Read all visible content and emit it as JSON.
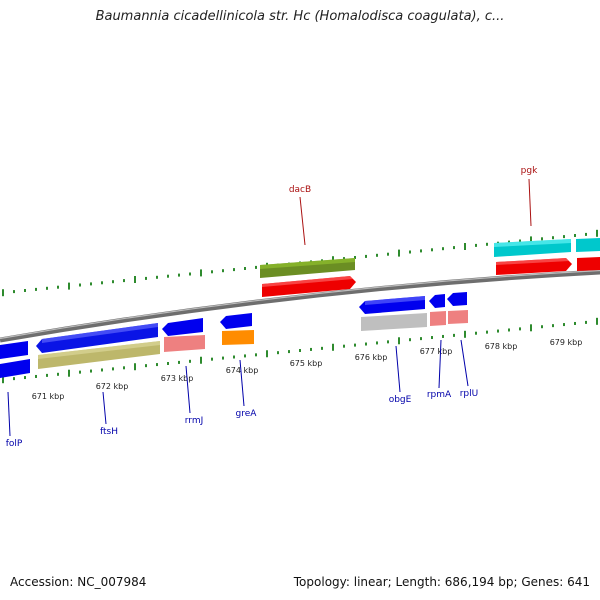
{
  "title": "Baumannia cicadellinicola str. Hc (Homalodisca coagulata), c...",
  "footer": {
    "accession": "Accession: NC_007984",
    "summary": "Topology: linear; Length: 686,194 bp; Genes: 641"
  },
  "colors": {
    "backbone": "#808080",
    "tick": "#2e8b2e",
    "label_forward": "#aa1111",
    "label_reverse": "#0000aa"
  },
  "scale_labels": [
    "671 kbp",
    "672 kbp",
    "673 kbp",
    "674 kbp",
    "675 kbp",
    "676 kbp",
    "677 kbp",
    "678 kbp",
    "679 kbp"
  ],
  "genes": [
    {
      "name": "folP",
      "strand": "reverse"
    },
    {
      "name": "ftsH",
      "strand": "reverse"
    },
    {
      "name": "rrmJ",
      "strand": "reverse"
    },
    {
      "name": "greA",
      "strand": "reverse"
    },
    {
      "name": "dacB",
      "strand": "forward"
    },
    {
      "name": "obgE",
      "strand": "reverse"
    },
    {
      "name": "rpmA",
      "strand": "reverse"
    },
    {
      "name": "rplU",
      "strand": "reverse"
    },
    {
      "name": "pgk",
      "strand": "forward"
    }
  ]
}
